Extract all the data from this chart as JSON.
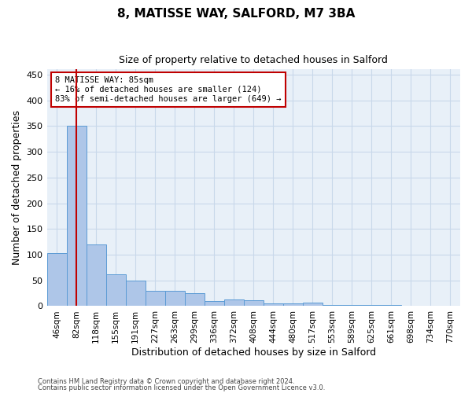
{
  "title1": "8, MATISSE WAY, SALFORD, M7 3BA",
  "title2": "Size of property relative to detached houses in Salford",
  "xlabel": "Distribution of detached houses by size in Salford",
  "ylabel": "Number of detached properties",
  "categories": [
    "46sqm",
    "82sqm",
    "118sqm",
    "155sqm",
    "191sqm",
    "227sqm",
    "263sqm",
    "299sqm",
    "336sqm",
    "372sqm",
    "408sqm",
    "444sqm",
    "480sqm",
    "517sqm",
    "553sqm",
    "589sqm",
    "625sqm",
    "661sqm",
    "698sqm",
    "734sqm",
    "770sqm"
  ],
  "values": [
    103,
    351,
    120,
    62,
    50,
    30,
    29,
    25,
    10,
    13,
    12,
    5,
    6,
    7,
    2,
    2,
    2,
    2,
    1,
    0,
    0
  ],
  "bar_color": "#aec6e8",
  "bar_edge_color": "#5b9bd5",
  "grid_color": "#c8d8ea",
  "background_color": "#e8f0f8",
  "vline_x": 1.0,
  "vline_color": "#c00000",
  "annotation_text": "8 MATISSE WAY: 85sqm\n← 16% of detached houses are smaller (124)\n83% of semi-detached houses are larger (649) →",
  "annotation_box_color": "#ffffff",
  "annotation_box_edge": "#c00000",
  "ylim": [
    0,
    460
  ],
  "yticks": [
    0,
    50,
    100,
    150,
    200,
    250,
    300,
    350,
    400,
    450
  ],
  "footer1": "Contains HM Land Registry data © Crown copyright and database right 2024.",
  "footer2": "Contains public sector information licensed under the Open Government Licence v3.0."
}
